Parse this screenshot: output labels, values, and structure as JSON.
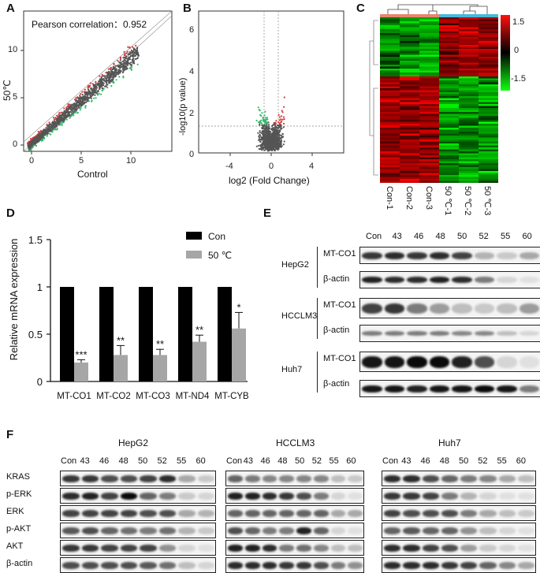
{
  "panels": {
    "A": {
      "letter": "A",
      "annotation": "Pearson correlation：0.952",
      "xlabel": "Control",
      "ylabel": "50℃",
      "xticks": [
        "0",
        "5",
        "10"
      ],
      "yticks": [
        "0",
        "5",
        "10"
      ]
    },
    "B": {
      "letter": "B",
      "xlabel": "log2 (Fold Change)",
      "ylabel": "-log10(p value)",
      "xticks": [
        "-4",
        "0",
        "4"
      ],
      "yticks": [
        "0",
        "2",
        "4",
        "6"
      ]
    },
    "C": {
      "letter": "C",
      "columns": [
        "Con-1",
        "Con-2",
        "Con-3",
        "50 ℃-1",
        "50 ℃-2",
        "50 ℃-3"
      ],
      "colorbar_ticks": [
        "1.5",
        "0",
        "-1.5"
      ]
    },
    "D": {
      "letter": "D"
    },
    "E": {
      "letter": "E",
      "lanes": [
        "Con",
        "43",
        "46",
        "48",
        "50",
        "52",
        "55",
        "60"
      ],
      "groups": [
        {
          "cell": "HepG2",
          "rows": [
            "MT-CO1",
            "β-actin"
          ]
        },
        {
          "cell": "HCCLM3",
          "rows": [
            "MT-CO1",
            "β-actin"
          ]
        },
        {
          "cell": "Huh7",
          "rows": [
            "MT-CO1",
            "β-actin"
          ]
        }
      ]
    },
    "F": {
      "letter": "F",
      "rows": [
        "KRAS",
        "p-ERK",
        "ERK",
        "p-AKT",
        "AKT",
        "β-actin"
      ],
      "lanes": [
        "Con",
        "43",
        "46",
        "48",
        "50",
        "52",
        "55",
        "60"
      ],
      "cells": [
        "HepG2",
        "HCCLM3",
        "Huh7"
      ]
    }
  },
  "chart_data": [
    {
      "type": "bar",
      "categories": [
        "MT-CO1",
        "MT-CO2",
        "MT-CO3",
        "MT-ND4",
        "MT-CYB"
      ],
      "series": [
        {
          "name": "Con",
          "values": [
            1,
            1,
            1,
            1,
            1
          ],
          "error": [
            0,
            0,
            0,
            0,
            0
          ],
          "color": "#000000"
        },
        {
          "name": "50 ℃",
          "values": [
            0.2,
            0.28,
            0.28,
            0.42,
            0.56
          ],
          "error": [
            0.03,
            0.1,
            0.06,
            0.07,
            0.17
          ],
          "color": "#a6a6a6"
        }
      ],
      "significance": [
        "***",
        "**",
        "**",
        "**",
        "*"
      ],
      "ylabel": "Relative mRNA expression",
      "ylim": [
        0,
        1.5
      ],
      "yticks": [
        "0",
        "0.5",
        "1",
        "1.5"
      ],
      "legend_placement": "top-right"
    }
  ]
}
